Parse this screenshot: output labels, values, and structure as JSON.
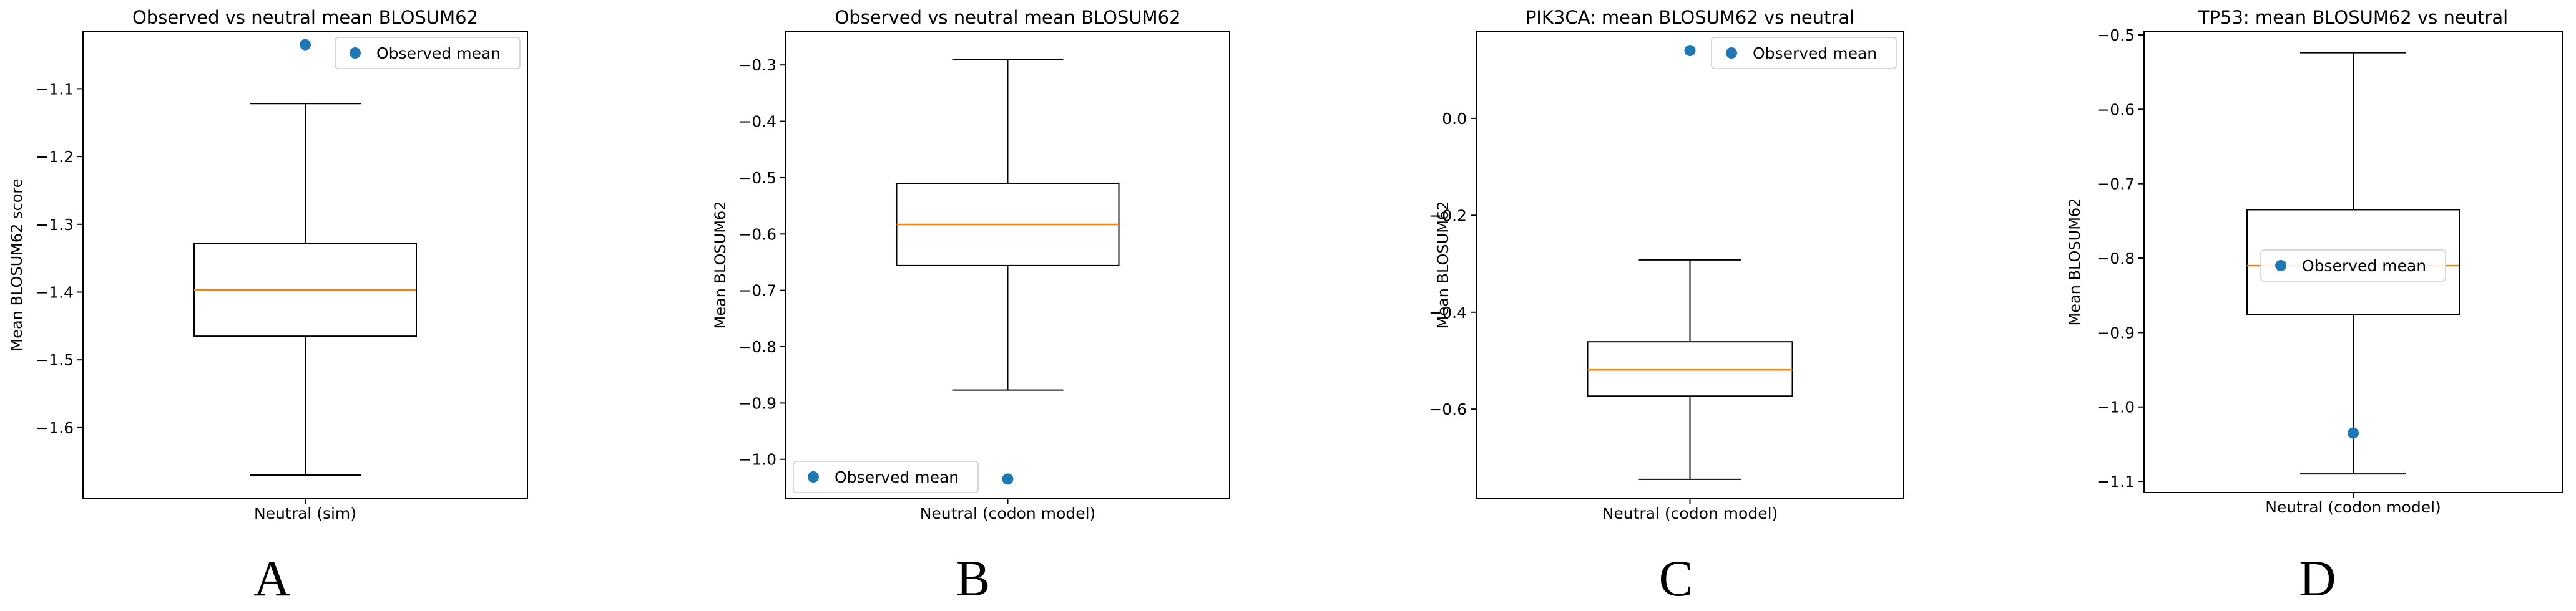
{
  "chart_data": [
    {
      "panel": "A",
      "type": "box",
      "title": "Observed vs neutral mean BLOSUM62",
      "xlabel": "",
      "ylabel": "Mean BLOSUM62 score",
      "categories": [
        "Neutral (sim)"
      ],
      "ylim": [
        -1.705,
        -1.015
      ],
      "yticks": [
        -1.6,
        -1.5,
        -1.4,
        -1.3,
        -1.2,
        -1.1
      ],
      "box": {
        "whisker_low": -1.67,
        "q1": -1.465,
        "median": -1.397,
        "q3": -1.328,
        "whisker_high": -1.122
      },
      "observed_mean": -1.035,
      "legend": {
        "label": "Observed mean",
        "loc": "upper right"
      }
    },
    {
      "panel": "B",
      "type": "box",
      "title": "Observed vs neutral mean BLOSUM62",
      "xlabel": "",
      "ylabel": "Mean BLOSUM62",
      "categories": [
        "Neutral (codon model)"
      ],
      "ylim": [
        -1.07,
        -0.24
      ],
      "yticks": [
        -1.0,
        -0.9,
        -0.8,
        -0.7,
        -0.6,
        -0.5,
        -0.4,
        -0.3
      ],
      "box": {
        "whisker_low": -0.877,
        "q1": -0.656,
        "median": -0.583,
        "q3": -0.51,
        "whisker_high": -0.29
      },
      "observed_mean": -1.035,
      "legend": {
        "label": "Observed mean",
        "loc": "lower left"
      }
    },
    {
      "panel": "C",
      "type": "box",
      "title": "PIK3CA: mean BLOSUM62 vs neutral",
      "xlabel": "",
      "ylabel": "Mean BLOSUM62",
      "categories": [
        "Neutral (codon model)"
      ],
      "ylim": [
        -0.785,
        0.18
      ],
      "yticks": [
        -0.6,
        -0.4,
        -0.2,
        0.0
      ],
      "box": {
        "whisker_low": -0.745,
        "q1": -0.573,
        "median": -0.519,
        "q3": -0.461,
        "whisker_high": -0.292
      },
      "observed_mean": 0.14,
      "legend": {
        "label": "Observed mean",
        "loc": "upper right"
      }
    },
    {
      "panel": "D",
      "type": "box",
      "title": "TP53: mean BLOSUM62 vs neutral",
      "xlabel": "",
      "ylabel": "Mean BLOSUM62",
      "categories": [
        "Neutral (codon model)"
      ],
      "ylim": [
        -1.115,
        -0.495
      ],
      "yticks": [
        -1.1,
        -1.0,
        -0.9,
        -0.8,
        -0.7,
        -0.6,
        -0.5
      ],
      "box": {
        "whisker_low": -1.09,
        "q1": -0.876,
        "median": -0.81,
        "q3": -0.735,
        "whisker_high": -0.524
      },
      "observed_mean": -1.035,
      "legend": {
        "label": "Observed mean",
        "loc": "center"
      }
    }
  ],
  "colors": {
    "observed": "#1f77b4",
    "median": "#ff7f0e",
    "box": "#000000"
  }
}
